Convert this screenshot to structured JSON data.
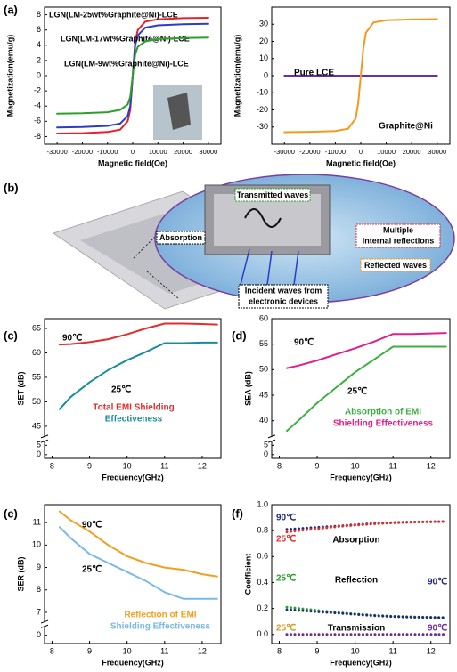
{
  "illustration": {
    "panel": "(b)",
    "labels": [
      "Transmitted waves",
      "Absorption",
      "Multiple",
      "internal reflections",
      "Reflected waves",
      "Incident waves from",
      "electronic devices"
    ]
  },
  "chart_data": [
    {
      "type": "line",
      "panel": "(a)",
      "x_label": "Magnetic field(Oe)",
      "y_label": "Magnetization(emu/g)",
      "x": [
        -30000,
        -20000,
        -10000,
        -5000,
        -2000,
        -1000,
        0,
        1000,
        2000,
        5000,
        10000,
        20000,
        30000
      ],
      "xlim": [
        -35000,
        35000
      ],
      "xticks": [
        -30000,
        -20000,
        -10000,
        0,
        10000,
        20000,
        30000
      ],
      "ylim": [
        -9,
        9
      ],
      "yticks": [
        -8,
        -6,
        -4,
        -2,
        0,
        2,
        4,
        6,
        8
      ],
      "series": [
        {
          "name": "LGN(LM-25wt%Graphite@Ni)-LCE",
          "color": "#e8202a",
          "values": [
            -7.6,
            -7.55,
            -7.4,
            -7.1,
            -6,
            -4.5,
            0,
            4.5,
            6,
            7.1,
            7.4,
            7.55,
            7.6
          ]
        },
        {
          "name": "LGN(LM-17wt%Graphite@Ni)-LCE",
          "color": "#2a3cc8",
          "values": [
            -6.8,
            -6.75,
            -6.6,
            -6.3,
            -5.3,
            -4,
            0,
            4,
            5.3,
            6.3,
            6.6,
            6.75,
            6.8
          ]
        },
        {
          "name": "LGN(LM-9wt%Graphite@Ni)-LCE",
          "color": "#2ca02c",
          "values": [
            -5,
            -4.95,
            -4.8,
            -4.5,
            -3.8,
            -2.8,
            0,
            2.8,
            3.8,
            4.5,
            4.8,
            4.95,
            5
          ]
        }
      ]
    },
    {
      "type": "line",
      "x_label": "Magnetic field(Oe)",
      "y_label": "Magnetization(emu/g)",
      "x": [
        -30000,
        -20000,
        -10000,
        -5000,
        -2000,
        -1000,
        0,
        1000,
        2000,
        5000,
        10000,
        20000,
        30000
      ],
      "xlim": [
        -35000,
        35000
      ],
      "xticks": [
        -30000,
        -20000,
        -10000,
        0,
        10000,
        20000,
        30000
      ],
      "ylim": [
        -40,
        40
      ],
      "yticks": [
        -30,
        -20,
        -10,
        0,
        10,
        20,
        30
      ],
      "series": [
        {
          "name": "Pure LCE",
          "color": "#6a2fa0",
          "values": [
            0,
            0,
            0,
            0,
            0,
            0,
            0,
            0,
            0,
            0,
            0,
            0,
            0
          ]
        },
        {
          "name": "Graphite@Ni",
          "color": "#f39a1e",
          "values": [
            -33,
            -32.8,
            -32.3,
            -31,
            -25,
            -16,
            0,
            16,
            25,
            31,
            32.3,
            32.8,
            33
          ]
        }
      ]
    },
    {
      "type": "line",
      "panel": "(c)",
      "x_label": "Frequency(GHz)",
      "y_label": "SET (dB)",
      "x": [
        8.2,
        8.5,
        9,
        9.5,
        10,
        10.5,
        11,
        11.5,
        12,
        12.4
      ],
      "xlim": [
        7.8,
        12.5
      ],
      "xticks": [
        8,
        9,
        10,
        11,
        12
      ],
      "ylim": [
        -2,
        67
      ],
      "ybreak": [
        7,
        43
      ],
      "yticks": [
        0,
        5,
        45,
        50,
        55,
        60,
        65
      ],
      "series": [
        {
          "name": "90℃",
          "color": "#e32d2d",
          "values": [
            61.7,
            61.8,
            62.2,
            62.8,
            63.8,
            65,
            66,
            66,
            65.9,
            65.8
          ]
        },
        {
          "name": "25℃",
          "color": "#1a8c9c",
          "values": [
            48.5,
            51,
            54,
            56.5,
            58.5,
            60.2,
            62,
            62,
            62.1,
            62.1
          ]
        }
      ],
      "annotations": [
        {
          "text": "Total EMI Shielding",
          "color": "#e32d2d"
        },
        {
          "text": "Effectiveness",
          "color": "#1a8c9c"
        }
      ]
    },
    {
      "type": "line",
      "panel": "(d)",
      "x_label": "Frequency(GHz)",
      "y_label": "SEA (dB)",
      "x": [
        8.2,
        8.5,
        9,
        9.5,
        10,
        10.5,
        11,
        11.5,
        12,
        12.4
      ],
      "xlim": [
        7.8,
        12.5
      ],
      "xticks": [
        8,
        9,
        10,
        11,
        12
      ],
      "ylim": [
        -2,
        60
      ],
      "ybreak": [
        7,
        37
      ],
      "yticks": [
        0,
        5,
        40,
        45,
        50,
        55,
        60
      ],
      "series": [
        {
          "name": "90℃",
          "color": "#e0208a",
          "values": [
            50.3,
            50.8,
            51.8,
            53,
            54.2,
            55.5,
            57,
            57,
            57.1,
            57.2
          ]
        },
        {
          "name": "25℃",
          "color": "#3cb043",
          "values": [
            38,
            40,
            43.5,
            46.5,
            49.5,
            52,
            54.5,
            54.5,
            54.5,
            54.5
          ]
        }
      ],
      "annotations": [
        {
          "text": "Absorption of EMI",
          "color": "#3cb043"
        },
        {
          "text": "Shielding Effectiveness",
          "color": "#e0208a"
        }
      ]
    },
    {
      "type": "line",
      "panel": "(e)",
      "x_label": "Frequency(GHz)",
      "y_label": "SER (dB)",
      "x": [
        8.2,
        8.5,
        9,
        9.5,
        10,
        10.5,
        11,
        11.5,
        12,
        12.4
      ],
      "xlim": [
        7.8,
        12.5
      ],
      "xticks": [
        8,
        9,
        10,
        11,
        12
      ],
      "ylim": [
        -1,
        11.8
      ],
      "ybreak": [
        1,
        6.6
      ],
      "yticks": [
        0,
        7,
        8,
        9,
        10,
        11
      ],
      "series": [
        {
          "name": "90℃",
          "color": "#f0a020",
          "values": [
            11.5,
            11.1,
            10.6,
            10,
            9.5,
            9.2,
            9,
            8.9,
            8.7,
            8.6
          ]
        },
        {
          "name": "25℃",
          "color": "#7ab8e8",
          "values": [
            10.8,
            10.3,
            9.6,
            9.2,
            8.8,
            8.4,
            7.9,
            7.6,
            7.6,
            7.6
          ]
        }
      ],
      "annotations": [
        {
          "text": "Reflection of EMI",
          "color": "#f0a020"
        },
        {
          "text": "Shielding Effectiveness",
          "color": "#7ab8e8"
        }
      ]
    },
    {
      "type": "line",
      "line_style": "dotted",
      "panel": "(f)",
      "x_label": "Frequency(GHz)",
      "y_label": "Coefficient",
      "x": [
        8.2,
        8.5,
        9,
        9.5,
        10,
        10.5,
        11,
        11.5,
        12,
        12.4
      ],
      "xlim": [
        7.8,
        12.5
      ],
      "xticks": [
        8,
        9,
        10,
        11,
        12
      ],
      "ylim": [
        -0.07,
        1.0
      ],
      "yticks": [
        {
          "value": 0,
          "label": "0.0"
        },
        0.2,
        0.4,
        0.6,
        0.8,
        {
          "value": 1,
          "label": "1.0"
        }
      ],
      "series": [
        {
          "name": "90℃",
          "color": "#1f2a7a",
          "values": [
            0.81,
            0.815,
            0.825,
            0.835,
            0.845,
            0.855,
            0.862,
            0.866,
            0.868,
            0.87
          ]
        },
        {
          "name": "25℃",
          "color": "#e32d2d",
          "values": [
            0.79,
            0.8,
            0.815,
            0.83,
            0.842,
            0.852,
            0.86,
            0.865,
            0.868,
            0.87
          ]
        },
        {
          "name": "25℃",
          "color": "#2ca02c",
          "values": [
            0.21,
            0.2,
            0.185,
            0.17,
            0.158,
            0.148,
            0.14,
            0.135,
            0.132,
            0.13
          ]
        },
        {
          "name": "90℃",
          "color": "#1f2a7a",
          "values": [
            0.19,
            0.185,
            0.175,
            0.165,
            0.155,
            0.145,
            0.138,
            0.133,
            0.13,
            0.128
          ]
        },
        {
          "name": "25℃",
          "color": "#d99a20",
          "values": [
            0.0,
            0.0,
            0.0,
            0.0,
            0.0,
            0.0,
            0.0,
            0.0,
            0.0,
            0.0
          ]
        },
        {
          "name": "90℃",
          "color": "#6a2fa0",
          "values": [
            0.0,
            0.0,
            0.0,
            0.0,
            0.0,
            0.0,
            0.0,
            0.0,
            0.0,
            0.0
          ]
        }
      ],
      "annotations": [
        {
          "text": "Absorption",
          "color": "#000000"
        },
        {
          "text": "Reflection",
          "color": "#000000"
        },
        {
          "text": "Transmission",
          "color": "#000000"
        }
      ]
    }
  ]
}
